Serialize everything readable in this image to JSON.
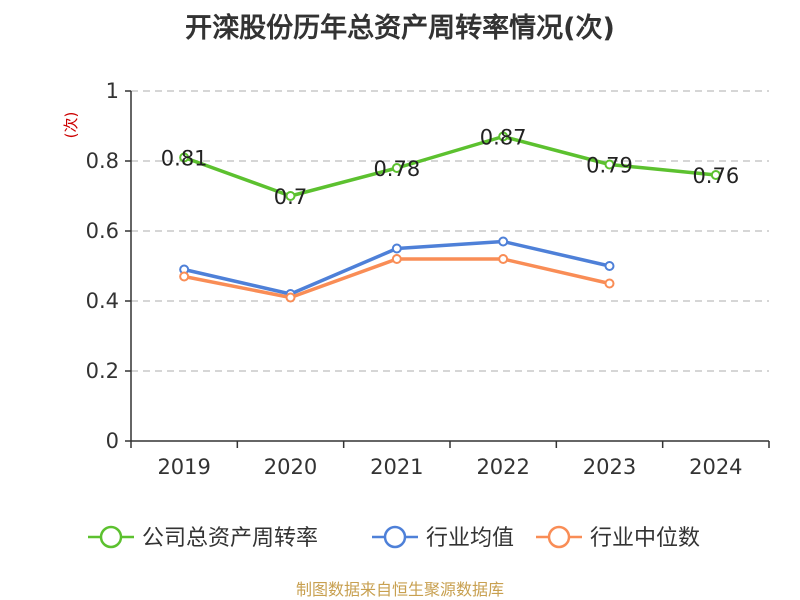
{
  "chart_data": {
    "type": "line",
    "title": "开滦股份历年总资产周转率情况(次)",
    "ylabel": "(次)",
    "categories": [
      "2019",
      "2020",
      "2021",
      "2022",
      "2023",
      "2024"
    ],
    "ylim": [
      0,
      1
    ],
    "yticks": [
      0,
      0.2,
      0.4,
      0.6,
      0.8,
      1
    ],
    "ytick_labels": [
      "0",
      "0.2",
      "0.4",
      "0.6",
      "0.8",
      "1"
    ],
    "grid": true,
    "legend_position": "bottom",
    "series": [
      {
        "name": "公司总资产周转率",
        "color": "#5cc12f",
        "values": [
          0.81,
          0.7,
          0.78,
          0.87,
          0.79,
          0.76
        ],
        "labels": [
          "0.81",
          "0.7",
          "0.78",
          "0.87",
          "0.79",
          "0.76"
        ],
        "show_labels": true
      },
      {
        "name": "行业均值",
        "color": "#4e80d8",
        "values": [
          0.49,
          0.42,
          0.55,
          0.57,
          0.5,
          null
        ],
        "show_labels": false
      },
      {
        "name": "行业中位数",
        "color": "#f98d56",
        "values": [
          0.47,
          0.41,
          0.52,
          0.52,
          0.45,
          null
        ],
        "show_labels": false
      }
    ]
  },
  "footer": {
    "source": "制图数据来自恒生聚源数据库"
  }
}
